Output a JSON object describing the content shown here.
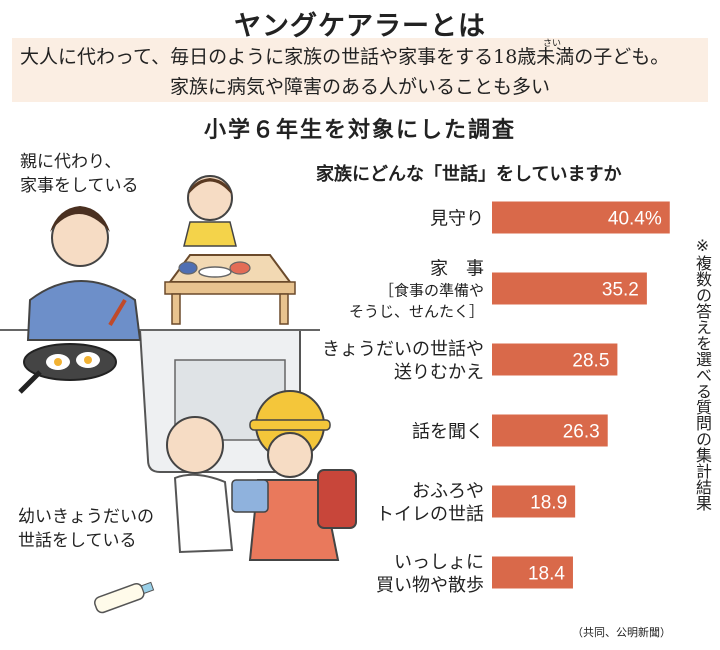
{
  "header": {
    "title": "ヤングケアラーとは",
    "definition_1": "大人に代わって、毎日のように家族の世話や家事をする18歳未満の子ども。",
    "ruby": "さい",
    "definition_2": "家族に病気や障害のある人がいることも多い",
    "survey_title": "小学６年生を対象にした調査"
  },
  "illustration": {
    "caption_top": [
      "親に代わり、",
      "家事をしている"
    ],
    "caption_bottom": [
      "幼いきょうだいの",
      "世話をしている"
    ]
  },
  "note": "※複数の答えを選べる質問の集計結果",
  "credit": "（共同、公明新聞）",
  "colors": {
    "bar": "#d9694a",
    "box": "#fbeee3"
  },
  "chart_data": {
    "type": "bar",
    "orientation": "horizontal",
    "title": "家族にどんな「世話」をしていますか",
    "unit": "%",
    "categories": [
      [
        "見守り"
      ],
      [
        "家　事",
        "［食事の準備や",
        "　そうじ、せんたく］"
      ],
      [
        "きょうだいの世話や",
        "送りむかえ"
      ],
      [
        "話を聞く"
      ],
      [
        "おふろや",
        "トイレの世話"
      ],
      [
        "いっしょに",
        "買い物や散歩"
      ]
    ],
    "values": [
      40.4,
      35.2,
      28.5,
      26.3,
      18.9,
      18.4
    ],
    "value_labels": [
      "40.4%",
      "35.2",
      "28.5",
      "26.3",
      "18.9",
      "18.4"
    ],
    "xlim": [
      0,
      45
    ],
    "grid": false,
    "legend": "none"
  }
}
